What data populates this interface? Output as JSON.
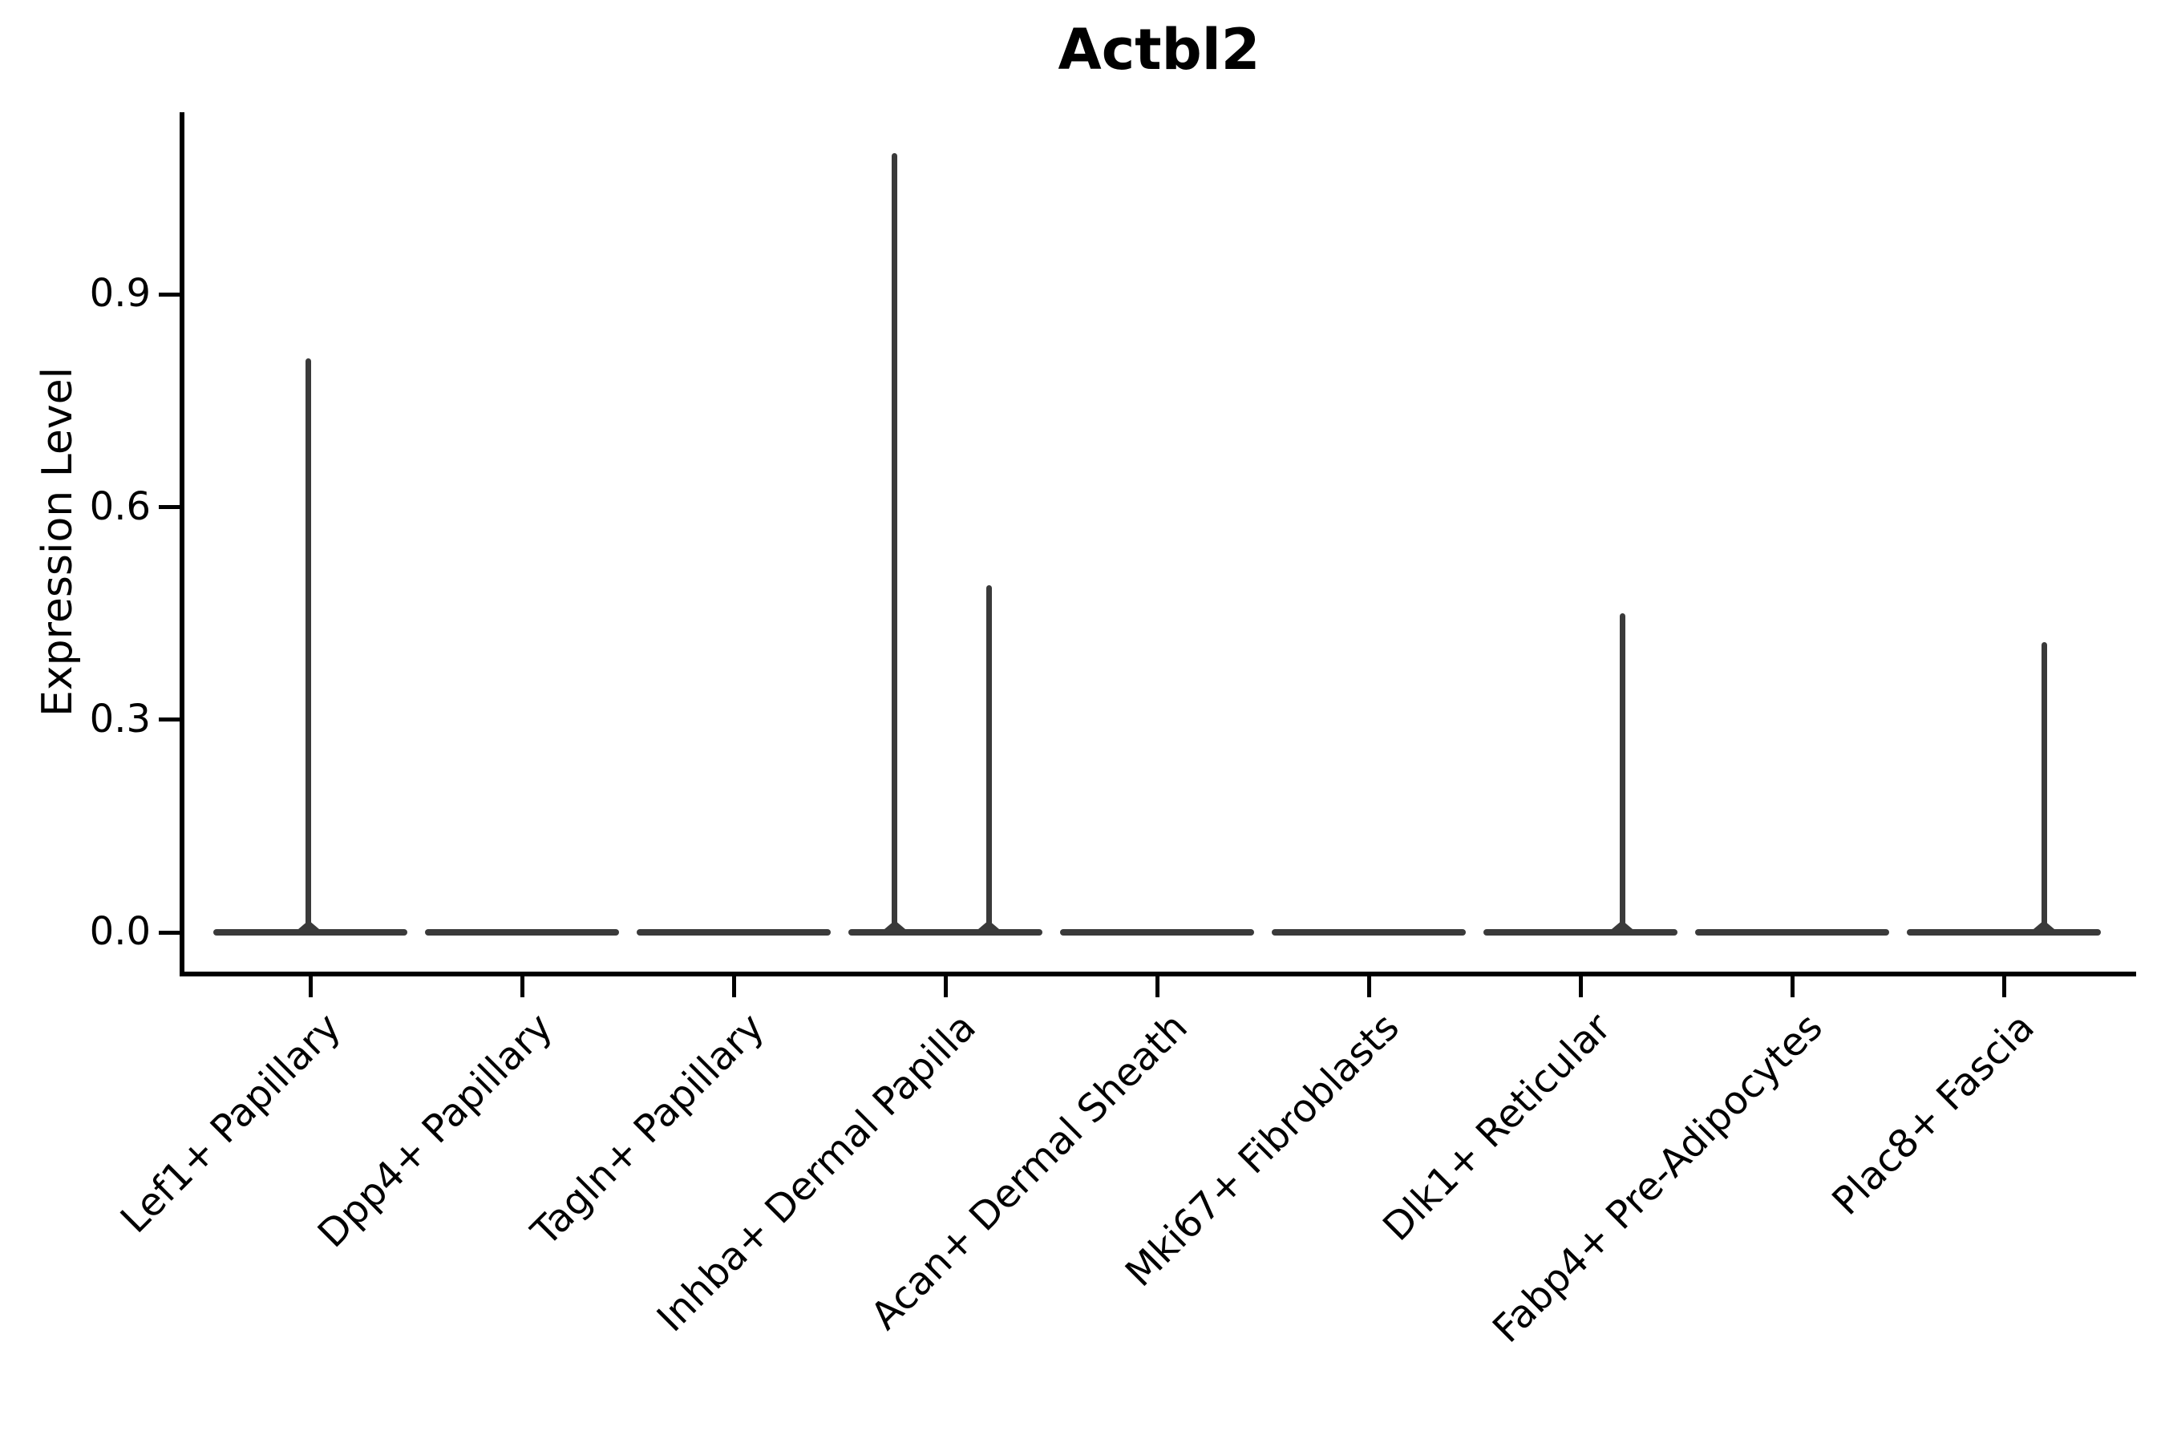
{
  "figure": {
    "title": "Actbl2",
    "background": "#ffffff"
  },
  "axes": {
    "ylabel": "Expression Level",
    "ytick_labels": [
      "0.0",
      "0.3",
      "0.6",
      "0.9"
    ],
    "colors": {
      "violin": "#3a3a3a",
      "spine": "#000000",
      "text": "#000000"
    }
  },
  "chart_data": {
    "type": "violin",
    "title": "Actbl2",
    "xlabel": "",
    "ylabel": "Expression Level",
    "ylim": [
      -0.055,
      1.157
    ],
    "ytick_values": [
      0.0,
      0.3,
      0.6,
      0.9
    ],
    "grid": false,
    "legend": false,
    "categories": [
      "Lef1+ Papillary",
      "Dpp4+ Papillary",
      "Tagln+ Papillary",
      "Inhba+ Dermal Papilla",
      "Acan+ Dermal Sheath",
      "Mki67+ Fibroblasts",
      "Dlk1+ Reticular",
      "Fabp4+ Pre-Adipocytes",
      "Plac8+ Fascia"
    ],
    "series": [
      {
        "name": "Lef1+ Papillary",
        "baseline_value": 0.0,
        "max_expression": 0.81,
        "spikes": [
          {
            "dx_frac": -0.008,
            "value": 0.81
          }
        ]
      },
      {
        "name": "Dpp4+ Papillary",
        "baseline_value": 0.0,
        "max_expression": 0.0,
        "spikes": []
      },
      {
        "name": "Tagln+ Papillary",
        "baseline_value": 0.0,
        "max_expression": 0.0,
        "spikes": []
      },
      {
        "name": "Inhba+ Dermal Papilla",
        "baseline_value": 0.0,
        "max_expression": 1.1,
        "spikes": [
          {
            "dx_frac": -0.24,
            "value": 1.1
          },
          {
            "dx_frac": 0.205,
            "value": 0.49
          }
        ]
      },
      {
        "name": "Acan+ Dermal Sheath",
        "baseline_value": 0.0,
        "max_expression": 0.0,
        "spikes": []
      },
      {
        "name": "Mki67+ Fibroblasts",
        "baseline_value": 0.0,
        "max_expression": 0.0,
        "spikes": []
      },
      {
        "name": "Dlk1+ Reticular",
        "baseline_value": 0.0,
        "max_expression": 0.45,
        "spikes": [
          {
            "dx_frac": 0.197,
            "value": 0.45
          }
        ]
      },
      {
        "name": "Fabp4+ Pre-Adipocytes",
        "baseline_value": 0.0,
        "max_expression": 0.0,
        "spikes": []
      },
      {
        "name": "Plac8+ Fascia",
        "baseline_value": 0.0,
        "max_expression": 0.41,
        "spikes": [
          {
            "dx_frac": 0.19,
            "value": 0.41
          }
        ]
      }
    ]
  }
}
